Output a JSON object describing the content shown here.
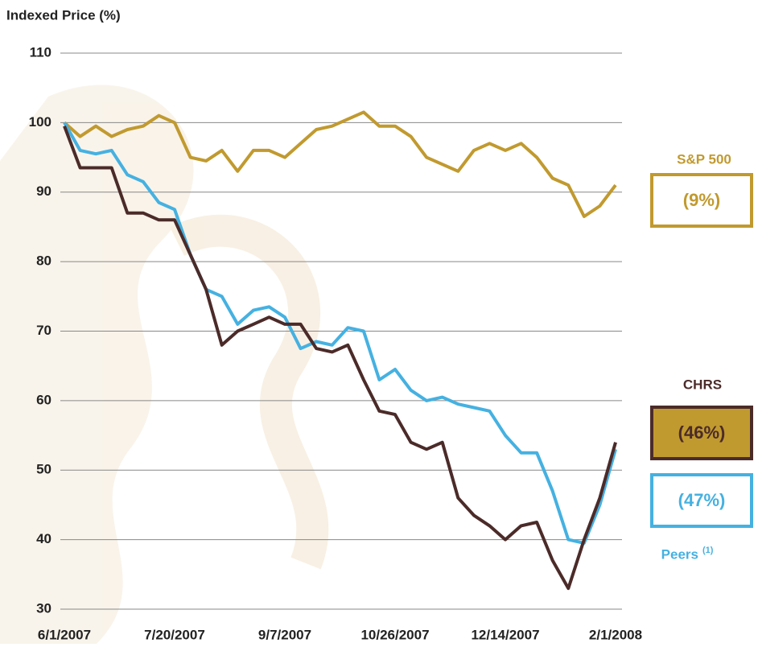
{
  "chart_data": {
    "type": "line",
    "y_label": "Indexed Price (%)",
    "x": [
      "6/1/2007",
      "6/8/2007",
      "6/15/2007",
      "6/22/2007",
      "6/29/2007",
      "7/6/2007",
      "7/13/2007",
      "7/20/2007",
      "7/27/2007",
      "8/3/2007",
      "8/10/2007",
      "8/17/2007",
      "8/24/2007",
      "8/31/2007",
      "9/7/2007",
      "9/14/2007",
      "9/21/2007",
      "9/28/2007",
      "10/5/2007",
      "10/12/2007",
      "10/19/2007",
      "10/26/2007",
      "11/2/2007",
      "11/9/2007",
      "11/16/2007",
      "11/23/2007",
      "11/30/2007",
      "12/7/2007",
      "12/14/2007",
      "12/21/2007",
      "12/28/2007",
      "1/4/2008",
      "1/11/2008",
      "1/18/2008",
      "1/25/2008",
      "2/1/2008"
    ],
    "series": [
      {
        "name": "S&P 500",
        "color": "#c19a2f",
        "change_label": "(9%)",
        "values": [
          100,
          98,
          99.5,
          98,
          99,
          99.5,
          101,
          100,
          95,
          94.5,
          96,
          93,
          96,
          96,
          95,
          97,
          99,
          99.5,
          100.5,
          101.5,
          99.5,
          99.5,
          98,
          95,
          94,
          93,
          96,
          97,
          96,
          97,
          95,
          92,
          91,
          86.5,
          88,
          91
        ]
      },
      {
        "name": "CHRS",
        "color": "#4b2b29",
        "change_label": "(46%)",
        "values": [
          99.5,
          93.5,
          93.5,
          93.5,
          87,
          87,
          86,
          86,
          81,
          76,
          68,
          70,
          71,
          72,
          71,
          71,
          67.5,
          67,
          68,
          63,
          58.5,
          58,
          54,
          53,
          54,
          46,
          43.5,
          42,
          40,
          42,
          42.5,
          37,
          33,
          40,
          46,
          54
        ]
      },
      {
        "name": "Peers",
        "note_marker": "(1)",
        "color": "#45b1e1",
        "change_label": "(47%)",
        "values": [
          100,
          96,
          95.5,
          96,
          92.5,
          91.5,
          88.5,
          87.5,
          81,
          76,
          75,
          71,
          73,
          73.5,
          72,
          67.5,
          68.5,
          68,
          70.5,
          70,
          63,
          64.5,
          61.5,
          60,
          60.5,
          59.5,
          59,
          58.5,
          55,
          52.5,
          52.5,
          47,
          40,
          39.5,
          45,
          53
        ]
      }
    ],
    "xlim": [
      "6/1/2007",
      "2/1/2008"
    ],
    "xticks": [
      "6/1/2007",
      "7/20/2007",
      "9/7/2007",
      "10/26/2007",
      "12/14/2007",
      "2/1/2008"
    ],
    "ylim": [
      30,
      110
    ],
    "yticks": [
      30,
      40,
      50,
      60,
      70,
      80,
      90,
      100,
      110
    ],
    "grid": true
  }
}
